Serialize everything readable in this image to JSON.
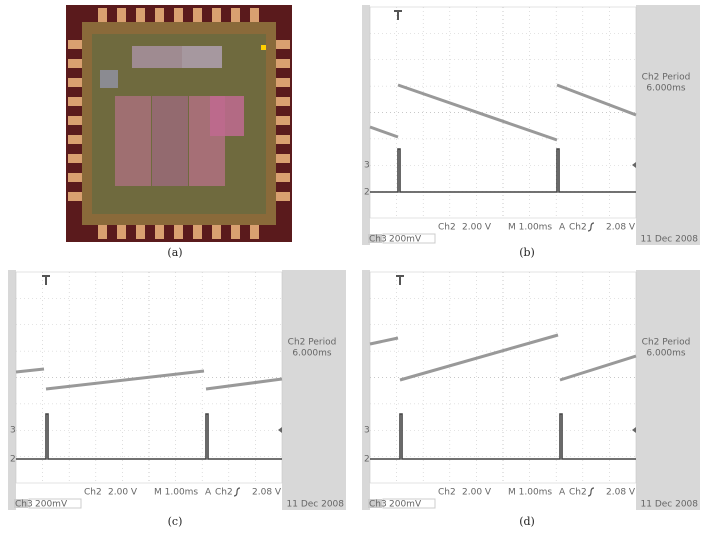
{
  "panels": [
    {
      "label": "(a)"
    },
    {
      "label": "(b)",
      "scope": {
        "period_label": "Ch2 Period",
        "period_value": "6.000ms",
        "ch_a": "Ch2",
        "volts_a": "2.00 V",
        "time": "M 1.00ms",
        "trig": "A",
        "ch_b": "Ch2",
        "volts_b": "2.08 V",
        "date": "11 Dec 2008",
        "ch3": "Ch3",
        "ch3_scale": "200mV",
        "marker_3": "3",
        "marker_2": "2"
      }
    },
    {
      "label": "(c)",
      "scope": {
        "period_label": "Ch2 Period",
        "period_value": "6.000ms",
        "ch_a": "Ch2",
        "volts_a": "2.00 V",
        "time": "M 1.00ms",
        "trig": "A",
        "ch_b": "Ch2",
        "volts_b": "2.08 V",
        "date": "11 Dec 2008",
        "ch3": "Ch3",
        "ch3_scale": "200mV",
        "marker_3": "3",
        "marker_2": "2"
      }
    },
    {
      "label": "(d)",
      "scope": {
        "period_label": "Ch2 Period",
        "period_value": "6.000ms",
        "ch_a": "Ch2",
        "volts_a": "2.00 V",
        "time": "M 1.00ms",
        "trig": "A",
        "ch_b": "Ch2",
        "volts_b": "2.08 V",
        "date": "11 Dec 2008",
        "ch3": "Ch3",
        "ch3_scale": "200mV",
        "marker_3": "3",
        "marker_2": "2"
      }
    }
  ]
}
